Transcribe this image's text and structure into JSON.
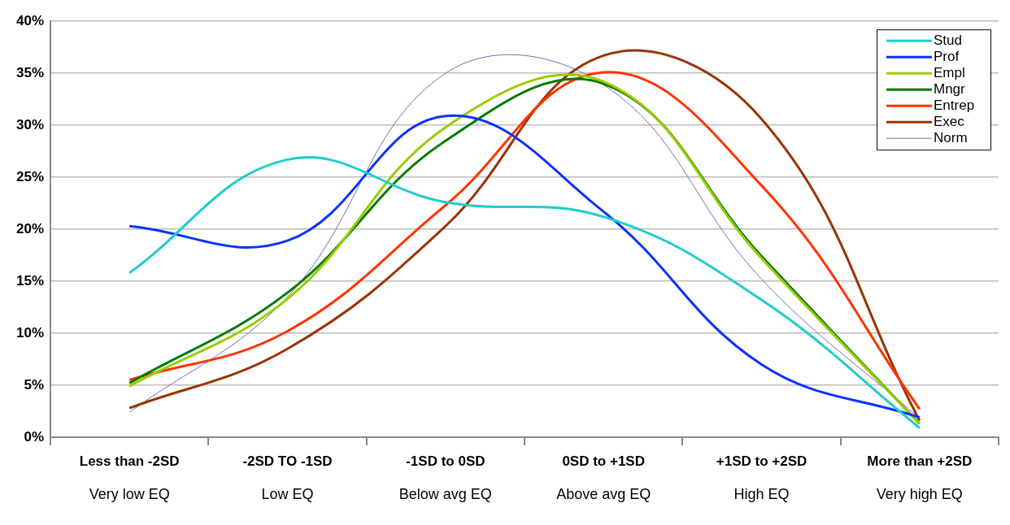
{
  "chart_data": {
    "type": "line",
    "categories": [
      "Less than -2SD\nVery low EQ",
      "-2SD TO -1SD\nLow EQ",
      "-1SD to 0SD\nBelow avg EQ",
      "0SD to +1SD\nAbove avg EQ",
      "+1SD to +2SD\nHigh EQ",
      "More than +2SD\nVery high EQ"
    ],
    "series": [
      {
        "name": "Stud",
        "color": "#1fcccc",
        "values": [
          15.8,
          26.7,
          22.6,
          21.2,
          13.2,
          0.9
        ]
      },
      {
        "name": "Prof",
        "color": "#0a32ff",
        "values": [
          20.3,
          18.9,
          30.9,
          21.7,
          7.0,
          1.9
        ]
      },
      {
        "name": "Empl",
        "color": "#99cc00",
        "values": [
          4.9,
          13.3,
          29.8,
          34.2,
          17.2,
          1.3
        ]
      },
      {
        "name": "Mngr",
        "color": "#007a00",
        "values": [
          5.2,
          13.9,
          28.5,
          34.0,
          17.4,
          1.3
        ]
      },
      {
        "name": "Entrep",
        "color": "#ff3300",
        "values": [
          5.5,
          10.2,
          22.3,
          35.1,
          24.2,
          2.7
        ]
      },
      {
        "name": "Exec",
        "color": "#993300",
        "values": [
          2.8,
          8.5,
          20.3,
          36.7,
          30.6,
          1.6
        ]
      },
      {
        "name": "Norm",
        "color": "#7070b0",
        "values": [
          2.4,
          13.5,
          35.0,
          33.9,
          15.2,
          1.8
        ]
      }
    ],
    "ylim": [
      0,
      40
    ],
    "yticks": [
      {
        "value": 0,
        "label": "0%"
      },
      {
        "value": 5,
        "label": "5%"
      },
      {
        "value": 10,
        "label": "10%"
      },
      {
        "value": 15,
        "label": "15%"
      },
      {
        "value": 20,
        "label": "20%"
      },
      {
        "value": 25,
        "label": "25%"
      },
      {
        "value": 30,
        "label": "30%"
      },
      {
        "value": 35,
        "label": "35%"
      },
      {
        "value": 40,
        "label": "40%"
      }
    ],
    "grid": "y",
    "legend": "top right",
    "marker": "none",
    "line_style": "solid"
  }
}
